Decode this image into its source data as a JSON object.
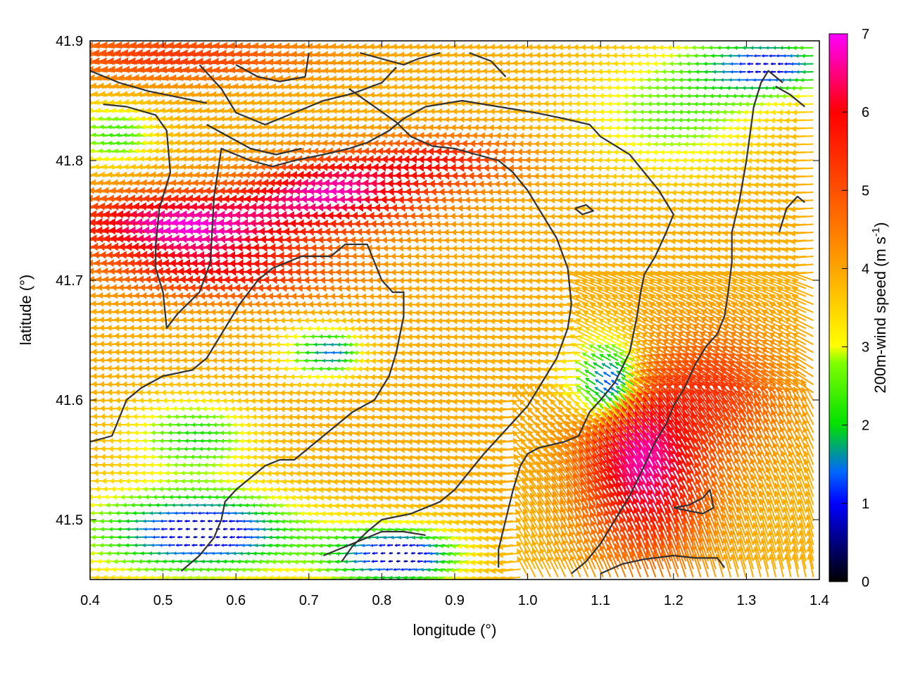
{
  "chart_data": {
    "type": "vector-field",
    "title": "",
    "xlabel": "longitude (°)",
    "ylabel": "latitude (°)",
    "xlim": [
      0.4,
      1.4
    ],
    "ylim": [
      41.45,
      41.9
    ],
    "xticks": [
      "0.4",
      "0.5",
      "0.6",
      "0.7",
      "0.8",
      "0.9",
      "1.0",
      "1.1",
      "1.2",
      "1.3",
      "1.4"
    ],
    "yticks": [
      "41.5",
      "41.6",
      "41.7",
      "41.8",
      "41.9"
    ],
    "colorbar": {
      "label": "200m-wind speed (m s-1)",
      "label_main": "200m-wind speed (m s",
      "label_sup": "-1",
      "label_end": ")",
      "range": [
        0,
        7
      ],
      "ticks": [
        "0",
        "1",
        "2",
        "3",
        "4",
        "5",
        "6",
        "7"
      ],
      "palette": [
        "#000000",
        "#0000ff",
        "#00e000",
        "#ffff00",
        "#ffa500",
        "#ff0000",
        "#ff00ff"
      ]
    },
    "contour_lines": [
      [
        [
          0.4,
          41.875
        ],
        [
          0.44,
          41.865
        ],
        [
          0.48,
          41.858
        ],
        [
          0.52,
          41.853
        ],
        [
          0.56,
          41.848
        ]
      ],
      [
        [
          0.418,
          41.847
        ],
        [
          0.45,
          41.845
        ],
        [
          0.49,
          41.838
        ],
        [
          0.505,
          41.825
        ],
        [
          0.51,
          41.79
        ],
        [
          0.495,
          41.76
        ],
        [
          0.49,
          41.73
        ],
        [
          0.49,
          41.71
        ],
        [
          0.5,
          41.69
        ],
        [
          0.505,
          41.66
        ],
        [
          0.52,
          41.672
        ],
        [
          0.55,
          41.69
        ],
        [
          0.565,
          41.715
        ],
        [
          0.57,
          41.77
        ],
        [
          0.58,
          41.81
        ],
        [
          0.62,
          41.8
        ],
        [
          0.65,
          41.795
        ],
        [
          0.68,
          41.8
        ],
        [
          0.72,
          41.805
        ],
        [
          0.755,
          41.81
        ],
        [
          0.78,
          41.815
        ],
        [
          0.81,
          41.825
        ],
        [
          0.83,
          41.835
        ],
        [
          0.86,
          41.845
        ],
        [
          0.91,
          41.85
        ],
        [
          0.96,
          41.845
        ],
        [
          1.01,
          41.84
        ],
        [
          1.05,
          41.835
        ],
        [
          1.085,
          41.83
        ],
        [
          1.1,
          41.82
        ],
        [
          1.14,
          41.805
        ],
        [
          1.16,
          41.79
        ],
        [
          1.18,
          41.775
        ],
        [
          1.19,
          41.765
        ],
        [
          1.2,
          41.755
        ],
        [
          1.19,
          41.74
        ],
        [
          1.175,
          41.72
        ],
        [
          1.16,
          41.705
        ],
        [
          1.155,
          41.69
        ],
        [
          1.15,
          41.67
        ],
        [
          1.14,
          41.64
        ],
        [
          1.12,
          41.615
        ],
        [
          1.1,
          41.6
        ],
        [
          1.085,
          41.59
        ],
        [
          1.07,
          41.57
        ],
        [
          1.05,
          41.565
        ],
        [
          1.015,
          41.56
        ],
        [
          1.0,
          41.555
        ],
        [
          0.99,
          41.545
        ],
        [
          0.98,
          41.525
        ],
        [
          0.97,
          41.5
        ],
        [
          0.96,
          41.475
        ],
        [
          0.96,
          41.46
        ]
      ],
      [
        [
          0.55,
          41.88
        ],
        [
          0.58,
          41.86
        ],
        [
          0.6,
          41.84
        ],
        [
          0.64,
          41.83
        ],
        [
          0.68,
          41.84
        ],
        [
          0.72,
          41.85
        ],
        [
          0.76,
          41.856
        ],
        [
          0.8,
          41.865
        ],
        [
          0.82,
          41.878
        ]
      ],
      [
        [
          0.6,
          41.88
        ],
        [
          0.63,
          41.87
        ],
        [
          0.66,
          41.866
        ],
        [
          0.695,
          41.87
        ],
        [
          0.7,
          41.89
        ]
      ],
      [
        [
          0.77,
          41.89
        ],
        [
          0.8,
          41.885
        ],
        [
          0.83,
          41.88
        ],
        [
          0.85,
          41.885
        ],
        [
          0.88,
          41.89
        ]
      ],
      [
        [
          0.92,
          41.89
        ],
        [
          0.95,
          41.883
        ],
        [
          0.97,
          41.87
        ]
      ],
      [
        [
          0.4,
          41.565
        ],
        [
          0.43,
          41.57
        ],
        [
          0.45,
          41.6
        ],
        [
          0.47,
          41.61
        ],
        [
          0.5,
          41.62
        ],
        [
          0.54,
          41.625
        ],
        [
          0.56,
          41.635
        ],
        [
          0.585,
          41.66
        ],
        [
          0.605,
          41.68
        ],
        [
          0.63,
          41.7
        ],
        [
          0.65,
          41.71
        ],
        [
          0.67,
          41.715
        ],
        [
          0.69,
          41.72
        ],
        [
          0.71,
          41.72
        ],
        [
          0.73,
          41.72
        ],
        [
          0.75,
          41.73
        ],
        [
          0.78,
          41.73
        ],
        [
          0.79,
          41.715
        ],
        [
          0.8,
          41.7
        ],
        [
          0.815,
          41.69
        ],
        [
          0.83,
          41.69
        ],
        [
          0.83,
          41.67
        ],
        [
          0.82,
          41.64
        ],
        [
          0.81,
          41.62
        ],
        [
          0.79,
          41.6
        ],
        [
          0.76,
          41.59
        ],
        [
          0.74,
          41.58
        ],
        [
          0.72,
          41.57
        ],
        [
          0.7,
          41.56
        ],
        [
          0.68,
          41.55
        ],
        [
          0.66,
          41.55
        ],
        [
          0.64,
          41.545
        ],
        [
          0.62,
          41.535
        ],
        [
          0.6,
          41.525
        ],
        [
          0.585,
          41.515
        ],
        [
          0.58,
          41.5
        ],
        [
          0.57,
          41.485
        ],
        [
          0.55,
          41.47
        ],
        [
          0.525,
          41.457
        ]
      ],
      [
        [
          0.56,
          41.83
        ],
        [
          0.59,
          41.82
        ],
        [
          0.62,
          41.81
        ],
        [
          0.655,
          41.805
        ],
        [
          0.69,
          41.81
        ]
      ],
      [
        [
          0.755,
          41.86
        ],
        [
          0.79,
          41.845
        ],
        [
          0.82,
          41.832
        ],
        [
          0.84,
          41.82
        ],
        [
          0.87,
          41.812
        ],
        [
          0.9,
          41.81
        ],
        [
          0.93,
          41.805
        ],
        [
          0.96,
          41.8
        ],
        [
          0.98,
          41.79
        ],
        [
          1.0,
          41.775
        ],
        [
          1.02,
          41.755
        ],
        [
          1.04,
          41.735
        ],
        [
          1.055,
          41.71
        ],
        [
          1.06,
          41.68
        ],
        [
          1.055,
          41.66
        ],
        [
          1.04,
          41.635
        ],
        [
          1.02,
          41.615
        ],
        [
          1.0,
          41.595
        ],
        [
          0.97,
          41.575
        ],
        [
          0.94,
          41.555
        ],
        [
          0.92,
          41.54
        ],
        [
          0.9,
          41.525
        ],
        [
          0.88,
          41.515
        ],
        [
          0.86,
          41.51
        ],
        [
          0.84,
          41.505
        ],
        [
          0.8,
          41.5
        ],
        [
          0.78,
          41.49
        ],
        [
          0.76,
          41.478
        ],
        [
          0.745,
          41.465
        ]
      ],
      [
        [
          1.065,
          41.76
        ],
        [
          1.08,
          41.763
        ],
        [
          1.09,
          41.758
        ],
        [
          1.075,
          41.755
        ],
        [
          1.065,
          41.76
        ]
      ],
      [
        [
          1.35,
          41.865
        ],
        [
          1.33,
          41.875
        ],
        [
          1.32,
          41.865
        ],
        [
          1.31,
          41.845
        ],
        [
          1.3,
          41.8
        ],
        [
          1.29,
          41.765
        ],
        [
          1.28,
          41.74
        ],
        [
          1.28,
          41.715
        ],
        [
          1.275,
          41.69
        ],
        [
          1.27,
          41.67
        ],
        [
          1.26,
          41.655
        ],
        [
          1.245,
          41.645
        ],
        [
          1.23,
          41.63
        ],
        [
          1.215,
          41.61
        ],
        [
          1.2,
          41.595
        ],
        [
          1.19,
          41.58
        ],
        [
          1.175,
          41.565
        ],
        [
          1.16,
          41.545
        ],
        [
          1.14,
          41.52
        ],
        [
          1.12,
          41.5
        ],
        [
          1.1,
          41.48
        ],
        [
          1.08,
          41.465
        ],
        [
          1.06,
          41.455
        ]
      ],
      [
        [
          1.38,
          41.845
        ],
        [
          1.36,
          41.855
        ],
        [
          1.34,
          41.862
        ]
      ],
      [
        [
          1.38,
          41.765
        ],
        [
          1.37,
          41.77
        ],
        [
          1.355,
          41.76
        ],
        [
          1.345,
          41.74
        ]
      ],
      [
        [
          1.2,
          41.51
        ],
        [
          1.22,
          41.512
        ],
        [
          1.24,
          41.518
        ],
        [
          1.25,
          41.525
        ],
        [
          1.255,
          41.51
        ],
        [
          1.24,
          41.505
        ],
        [
          1.2,
          41.51
        ]
      ],
      [
        [
          1.1,
          41.455
        ],
        [
          1.13,
          41.463
        ],
        [
          1.16,
          41.467
        ],
        [
          1.2,
          41.47
        ],
        [
          1.23,
          41.468
        ],
        [
          1.26,
          41.468
        ],
        [
          1.27,
          41.46
        ]
      ],
      [
        [
          0.72,
          41.47
        ],
        [
          0.76,
          41.48
        ],
        [
          0.8,
          41.49
        ],
        [
          0.83,
          41.49
        ],
        [
          0.86,
          41.487
        ]
      ]
    ]
  }
}
